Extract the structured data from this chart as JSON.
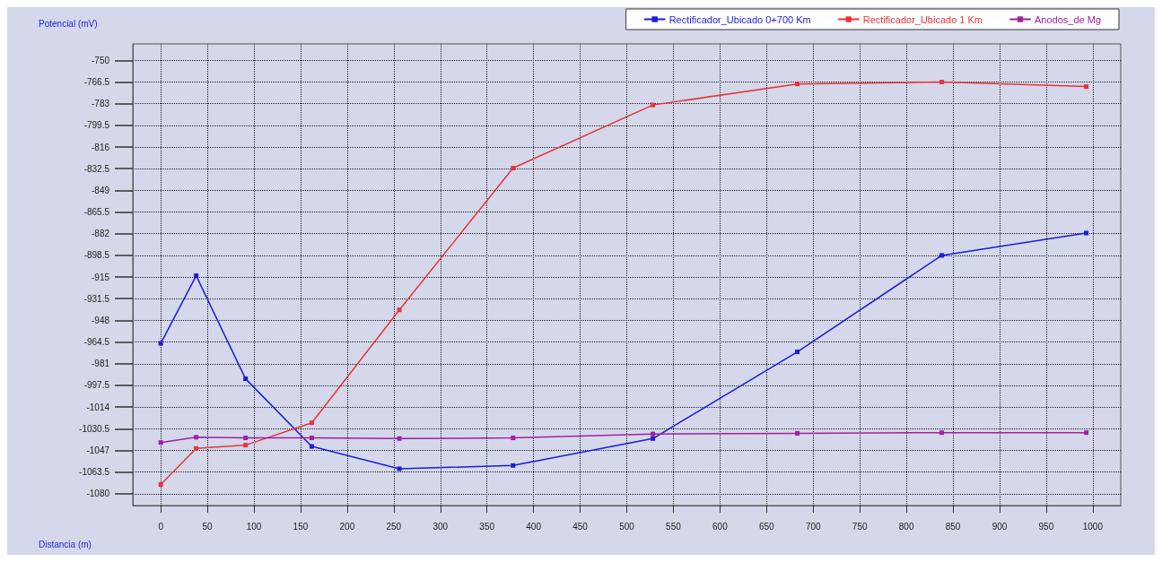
{
  "chart_data": {
    "type": "line",
    "xlabel": "Distancia (m)",
    "ylabel": "Potencial (mV)",
    "series": [
      {
        "name": "Rectificador_Ubicado 0+700 Km",
        "color": "#1c1cd6",
        "x": [
          0,
          38,
          91,
          162,
          256,
          378,
          528,
          683,
          838,
          993
        ],
        "values": [
          -965.5,
          -914,
          -992.5,
          -1044,
          -1061,
          -1058.5,
          -1038,
          -972,
          -898.5,
          -881.5
        ]
      },
      {
        "name": "Rectificador_Ubicado 1 Km",
        "color": "#e8343a",
        "x": [
          0,
          38,
          91,
          162,
          256,
          378,
          528,
          683,
          838,
          993
        ],
        "values": [
          -1073,
          -1045.5,
          -1043,
          -1026,
          -940,
          -832,
          -784,
          -768,
          -766.5,
          -770
        ]
      },
      {
        "name": "Anodos_de Mg",
        "color": "#a020a0",
        "x": [
          0,
          38,
          91,
          162,
          256,
          378,
          528,
          683,
          838,
          993
        ],
        "values": [
          -1041,
          -1037,
          -1037.5,
          -1037.5,
          -1038,
          -1037.5,
          -1034.5,
          -1034,
          -1033.5,
          -1033.5
        ]
      }
    ],
    "xlim": [
      -30,
      1030
    ],
    "xticks": [
      0,
      50,
      100,
      150,
      200,
      250,
      300,
      350,
      400,
      450,
      500,
      550,
      600,
      650,
      700,
      750,
      800,
      850,
      900,
      950,
      1000
    ],
    "ylim": [
      -1089,
      -737.5
    ],
    "yticks": [
      -750,
      -766.5,
      -783,
      -799.5,
      -816,
      -832.5,
      -849,
      -865.5,
      -882,
      -898.5,
      -915,
      -931.5,
      -948,
      -964.5,
      -981,
      -997.5,
      -1014,
      -1030.5,
      -1047,
      -1063.5,
      -1080
    ],
    "grid": true,
    "legend": "top right",
    "marker": "square",
    "line_style": "solid"
  }
}
